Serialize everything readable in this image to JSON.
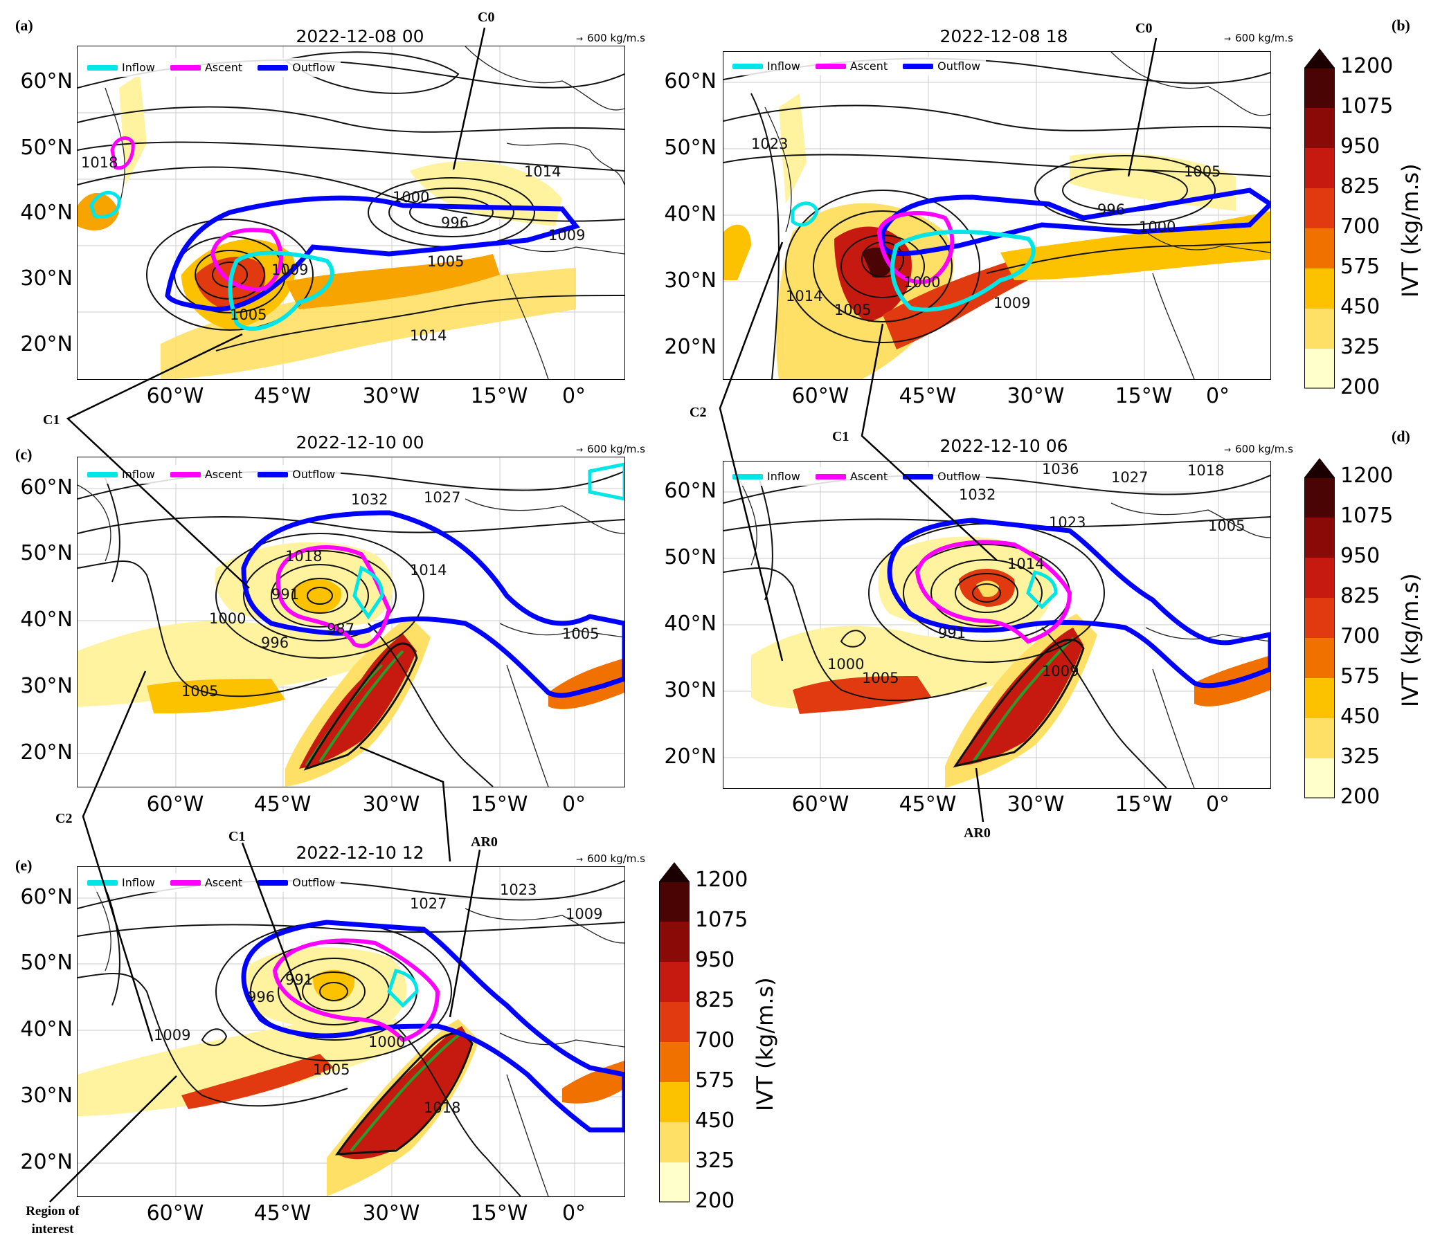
{
  "panels": [
    {
      "id": "a",
      "label": "(a)",
      "title": "2022-12-08 00",
      "scale": "600",
      "unit": "kg/m.s"
    },
    {
      "id": "b",
      "label": "(b)",
      "title": "2022-12-08 18",
      "scale": "600",
      "unit": "kg/m.s"
    },
    {
      "id": "c",
      "label": "(c)",
      "title": "2022-12-10 00",
      "scale": "600",
      "unit": "kg/m.s"
    },
    {
      "id": "d",
      "label": "(d)",
      "title": "2022-12-10 06",
      "scale": "600",
      "unit": "kg/m.s"
    },
    {
      "id": "e",
      "label": "(e)",
      "title": "2022-12-10 12",
      "scale": "600",
      "unit": "kg/m.s"
    }
  ],
  "legend": {
    "inflow": "Inflow",
    "ascent": "Ascent",
    "outflow": "Outflow"
  },
  "axes": {
    "lat_ticks": [
      "60°N",
      "50°N",
      "40°N",
      "30°N",
      "20°N"
    ],
    "lon_ticks": [
      "60°W",
      "45°W",
      "30°W",
      "15°W",
      "0°"
    ]
  },
  "colorbar": {
    "title": "IVT (kg/m.s)",
    "ticks": [
      "1200",
      "1075",
      "950",
      "825",
      "700",
      "575",
      "450",
      "325",
      "200"
    ],
    "colors": [
      "#ffffcc",
      "#fff3a0",
      "#ffe066",
      "#fcc200",
      "#f7a300",
      "#f07000",
      "#e23a10",
      "#c61a10",
      "#8a0a08",
      "#4a0404"
    ]
  },
  "colors": {
    "inflow": "#00e5e5",
    "ascent": "#ff00ff",
    "outflow": "#0000ff"
  },
  "annotations": {
    "c0": "C0",
    "c1": "C1",
    "c2": "C2",
    "ar0": "AR0",
    "region_line1": "Region of",
    "region_line2": "interest"
  },
  "isobars": {
    "a": [
      "1014",
      "1000",
      "996",
      "1009",
      "1005",
      "1014",
      "1018",
      "1009",
      "1005"
    ],
    "b": [
      "1005",
      "996",
      "1000",
      "1023",
      "1014",
      "1005",
      "1009",
      "1000"
    ],
    "c": [
      "1032",
      "1027",
      "1018",
      "1014",
      "1000",
      "996",
      "991",
      "987",
      "1005",
      "1005"
    ],
    "d": [
      "1036",
      "1027",
      "1018",
      "1032",
      "1023",
      "1014",
      "1005",
      "1000",
      "991",
      "1005",
      "1009"
    ],
    "e": [
      "1027",
      "1023",
      "1009",
      "1009",
      "1000",
      "1005",
      "1018",
      "996",
      "991"
    ]
  }
}
